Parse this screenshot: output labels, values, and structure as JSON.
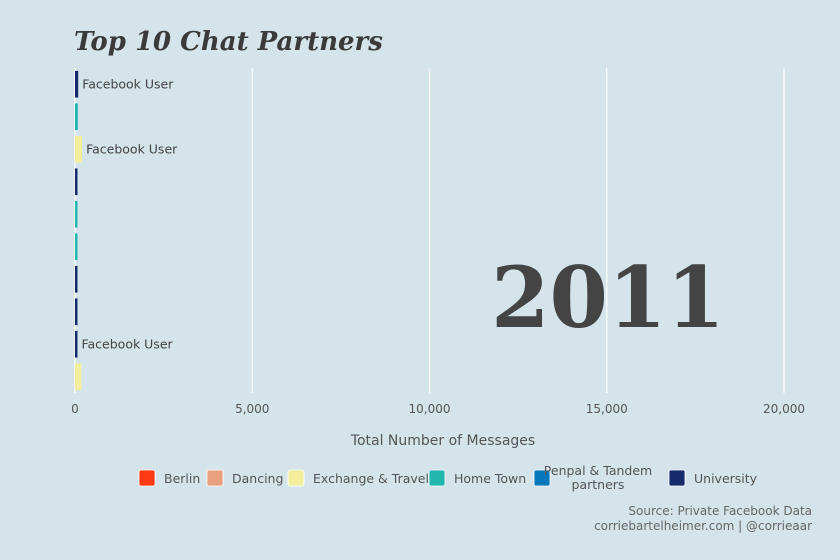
{
  "chart_data": {
    "type": "bar",
    "title": "Top 10 Chat Partners",
    "xlabel": "Total Number of Messages",
    "xlim": [
      0,
      21000
    ],
    "xticks": [
      0,
      5000,
      10000,
      15000,
      20000
    ],
    "xtick_labels": [
      "0",
      "5,000",
      "10,000",
      "15,000",
      "20,000"
    ],
    "year_label": "2011",
    "bars": [
      {
        "label": "Facebook User",
        "group": "University",
        "value": 90
      },
      {
        "label": "",
        "group": "Home Town",
        "value": 80
      },
      {
        "label": "Facebook User",
        "group": "Exchange & Travel",
        "value": 200
      },
      {
        "label": "",
        "group": "University",
        "value": 70
      },
      {
        "label": "",
        "group": "Home Town",
        "value": 70
      },
      {
        "label": "",
        "group": "Home Town",
        "value": 70
      },
      {
        "label": "",
        "group": "University",
        "value": 70
      },
      {
        "label": "",
        "group": "University",
        "value": 70
      },
      {
        "label": "Facebook User",
        "group": "University",
        "value": 70
      },
      {
        "label": "",
        "group": "Exchange & Travel",
        "value": 180
      }
    ],
    "legend": [
      {
        "name": "Berlin",
        "color": "#ff3a12"
      },
      {
        "name": "Dancing",
        "color": "#e9a07e"
      },
      {
        "name": "Exchange & Travel",
        "color": "#f2ee9c"
      },
      {
        "name": "Home Town",
        "color": "#22b7ae"
      },
      {
        "name": "Penpal & Tandem partners",
        "lines": [
          "Penpal & Tandem",
          "partners"
        ],
        "color": "#0777bb"
      },
      {
        "name": "University",
        "color": "#172a6b"
      }
    ],
    "legend_position": "bottom",
    "grid": "vertical",
    "caption": [
      "Source: Private Facebook Data",
      "corriebartelheimer.com | @corrieaar"
    ]
  }
}
